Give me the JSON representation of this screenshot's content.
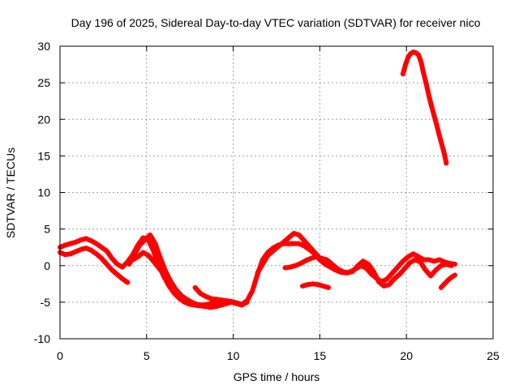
{
  "chart_data": {
    "type": "scatter",
    "title": "Day 196 of 2025, Sidereal Day-to-day VTEC variation (SDTVAR) for receiver nico",
    "xlabel": "GPS time / hours",
    "ylabel": "SDTVAR / TECUs",
    "xlim": [
      0,
      25
    ],
    "ylim": [
      -10,
      30
    ],
    "xticks": [
      0,
      5,
      10,
      15,
      20,
      25
    ],
    "yticks": [
      -10,
      -5,
      0,
      5,
      10,
      15,
      20,
      25,
      30
    ],
    "grid": true,
    "marker_color": "#ff0000",
    "series": [
      {
        "name": "track-a",
        "x": [
          0.0,
          0.3,
          0.6,
          0.9,
          1.2,
          1.5,
          1.8,
          2.1,
          2.4,
          2.7,
          3.0,
          3.3,
          3.6,
          3.9,
          4.2,
          4.5,
          4.8,
          5.1,
          5.4,
          5.7,
          6.0,
          6.3,
          6.6,
          6.9,
          7.2,
          7.5,
          7.8,
          8.1,
          8.4,
          8.7,
          9.0,
          9.3,
          9.6,
          9.9,
          10.2,
          10.5,
          10.8
        ],
        "y": [
          2.5,
          2.8,
          3.0,
          3.2,
          3.5,
          3.7,
          3.4,
          3.0,
          2.5,
          2.0,
          1.0,
          0.2,
          -0.2,
          0.5,
          1.5,
          2.8,
          3.8,
          3.5,
          2.0,
          0.0,
          -1.5,
          -2.8,
          -3.8,
          -4.5,
          -5.0,
          -5.3,
          -5.4,
          -5.5,
          -5.6,
          -5.7,
          -5.6,
          -5.4,
          -5.2,
          -5.0,
          -5.2,
          -5.4,
          -5.0
        ]
      },
      {
        "name": "track-b",
        "x": [
          0.0,
          0.3,
          0.6,
          0.9,
          1.2,
          1.5,
          1.8,
          2.1,
          2.4,
          2.7,
          3.0,
          3.3,
          3.6,
          3.9
        ],
        "y": [
          1.8,
          1.5,
          1.6,
          1.9,
          2.2,
          2.4,
          2.1,
          1.6,
          1.0,
          0.2,
          -0.6,
          -1.2,
          -1.8,
          -2.3
        ]
      },
      {
        "name": "track-c",
        "x": [
          4.0,
          4.3,
          4.6,
          4.9,
          5.2,
          5.5,
          5.8,
          6.1,
          6.4,
          6.7,
          7.0,
          7.3,
          7.6,
          7.9,
          8.2,
          8.5,
          8.8,
          9.1,
          9.4,
          9.7,
          10.0
        ],
        "y": [
          0.2,
          1.5,
          2.8,
          3.5,
          4.2,
          3.0,
          1.0,
          -0.8,
          -2.2,
          -3.3,
          -4.1,
          -4.6,
          -5.0,
          -5.3,
          -5.4,
          -5.3,
          -5.1,
          -4.9,
          -4.8,
          -4.9,
          -5.0
        ]
      },
      {
        "name": "track-d",
        "x": [
          4.2,
          4.5,
          4.8,
          5.1,
          5.4,
          5.7,
          6.0,
          6.3
        ],
        "y": [
          0.8,
          1.2,
          1.8,
          1.4,
          0.6,
          -0.3,
          -1.2,
          -2.0
        ]
      },
      {
        "name": "track-e",
        "x": [
          7.8,
          8.1,
          8.4,
          8.7,
          9.0,
          9.3,
          9.6,
          9.9,
          10.2,
          10.5,
          10.8,
          11.1,
          11.4,
          11.7,
          12.0,
          12.3,
          12.6,
          12.9,
          13.2,
          13.5,
          13.8,
          14.1,
          14.4,
          14.7,
          15.0,
          15.3,
          15.6,
          15.9,
          16.2,
          16.5,
          16.8,
          17.1,
          17.4,
          17.7,
          18.0,
          18.3,
          18.6,
          18.9,
          19.2,
          19.5,
          19.8,
          20.1,
          20.4,
          20.7,
          21.0,
          21.3,
          21.6,
          21.9,
          22.2,
          22.5,
          22.8
        ],
        "y": [
          -3.0,
          -3.8,
          -4.2,
          -4.5,
          -4.6,
          -4.7,
          -4.8,
          -4.9,
          -5.1,
          -5.3,
          -4.8,
          -3.5,
          -1.2,
          0.8,
          1.8,
          2.4,
          2.8,
          3.0,
          3.0,
          3.0,
          3.0,
          2.7,
          2.2,
          1.6,
          0.8,
          0.2,
          -0.2,
          -0.6,
          -0.9,
          -1.0,
          -0.8,
          -0.4,
          0.0,
          -0.4,
          -1.2,
          -1.8,
          -2.2,
          -1.8,
          -1.0,
          -0.2,
          0.6,
          1.2,
          1.6,
          1.2,
          0.8,
          0.8,
          0.6,
          0.8,
          0.5,
          0.3,
          0.2
        ]
      },
      {
        "name": "track-f",
        "x": [
          11.4,
          11.7,
          12.0,
          12.3,
          12.6,
          12.9,
          13.2,
          13.5,
          13.8,
          14.1,
          14.4,
          14.7,
          15.0,
          15.3
        ],
        "y": [
          -1.0,
          0.2,
          1.4,
          2.0,
          2.6,
          3.2,
          3.8,
          4.4,
          4.2,
          3.4,
          2.6,
          1.8,
          1.0,
          0.5
        ]
      },
      {
        "name": "track-g",
        "x": [
          13.0,
          13.3,
          13.6,
          13.9,
          14.2,
          14.5,
          14.8,
          15.1,
          15.4,
          15.7,
          16.0,
          16.3,
          16.6,
          16.9,
          17.2,
          17.5,
          17.8,
          18.1,
          18.4,
          18.7,
          19.0,
          19.3,
          19.6,
          19.9,
          20.2,
          20.5,
          20.8,
          21.1,
          21.4,
          21.7,
          22.0,
          22.3,
          22.6
        ],
        "y": [
          -0.3,
          -0.2,
          0.0,
          0.3,
          0.7,
          1.0,
          1.2,
          1.0,
          0.8,
          0.2,
          -0.4,
          -0.8,
          -1.0,
          -0.8,
          0.0,
          0.6,
          0.2,
          -0.8,
          -2.2,
          -2.8,
          -2.6,
          -1.8,
          -1.2,
          -0.4,
          0.4,
          0.8,
          0.5,
          -0.6,
          -1.4,
          -0.6,
          0.0,
          0.2,
          0.0
        ]
      },
      {
        "name": "track-h",
        "x": [
          14.0,
          14.3,
          14.6,
          14.9,
          15.2,
          15.5
        ],
        "y": [
          -2.8,
          -2.6,
          -2.5,
          -2.6,
          -2.8,
          -3.0
        ]
      },
      {
        "name": "track-i",
        "x": [
          22.0,
          22.2,
          22.4,
          22.6,
          22.8
        ],
        "y": [
          -3.0,
          -2.5,
          -2.0,
          -1.6,
          -1.3
        ]
      },
      {
        "name": "track-j",
        "x": [
          19.8,
          19.95,
          20.1,
          20.25,
          20.4,
          20.55,
          20.7,
          20.85,
          21.0,
          21.15,
          21.3,
          21.45,
          21.6,
          21.75,
          21.9,
          22.05,
          22.2,
          22.3
        ],
        "y": [
          26.2,
          27.5,
          28.5,
          29.0,
          29.2,
          29.1,
          28.8,
          27.8,
          26.2,
          24.8,
          23.2,
          21.8,
          20.5,
          19.2,
          17.8,
          16.5,
          15.2,
          14.0
        ]
      }
    ]
  }
}
